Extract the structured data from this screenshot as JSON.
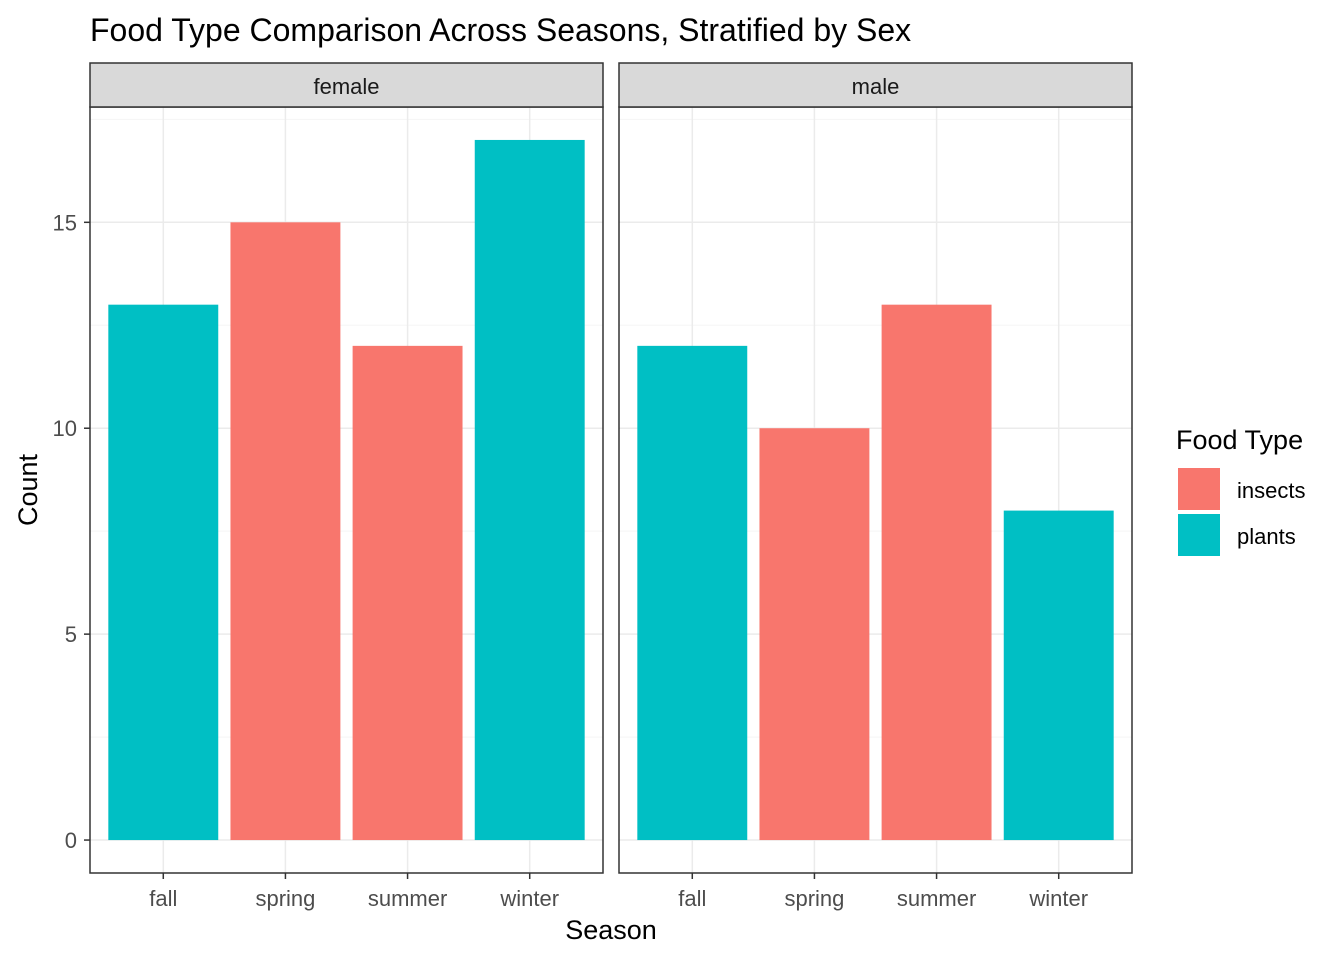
{
  "chart_data": {
    "type": "bar",
    "title": "Food Type Comparison Across Seasons, Stratified by Sex",
    "xlabel": "Season",
    "ylabel": "Count",
    "ylim": [
      -0.8,
      17.8
    ],
    "yticks": [
      0,
      5,
      10,
      15
    ],
    "y_tick_labels": [
      "0",
      "5",
      "10",
      "15"
    ],
    "categories": [
      "fall",
      "spring",
      "summer",
      "winter"
    ],
    "grid": true,
    "legend": {
      "title": "Food Type",
      "position": "right",
      "entries": [
        {
          "name": "insects",
          "color": "#F8766D"
        },
        {
          "name": "plants",
          "color": "#00BFC4"
        }
      ]
    },
    "panels": [
      {
        "facet": "female",
        "bars": [
          {
            "category": "fall",
            "value": 13,
            "food_type": "plants"
          },
          {
            "category": "spring",
            "value": 15,
            "food_type": "insects"
          },
          {
            "category": "summer",
            "value": 12,
            "food_type": "insects"
          },
          {
            "category": "winter",
            "value": 17,
            "food_type": "plants"
          }
        ]
      },
      {
        "facet": "male",
        "bars": [
          {
            "category": "fall",
            "value": 12,
            "food_type": "plants"
          },
          {
            "category": "spring",
            "value": 10,
            "food_type": "insects"
          },
          {
            "category": "summer",
            "value": 13,
            "food_type": "insects"
          },
          {
            "category": "winter",
            "value": 8,
            "food_type": "plants"
          }
        ]
      }
    ]
  },
  "colors": {
    "insects": "#F8766D",
    "plants": "#00BFC4",
    "strip_background": "#D9D9D9",
    "grid_major": "#EBEBEB",
    "grid_minor": "#F5F5F5",
    "panel_border": "#333333"
  }
}
